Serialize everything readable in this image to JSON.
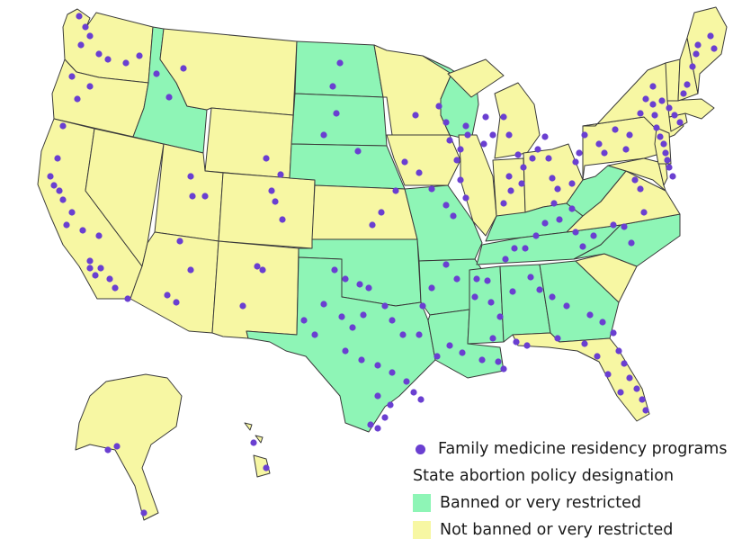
{
  "colors": {
    "restricted": "#8ef5b6",
    "not_restricted": "#f7f7a3",
    "program_dot": "#6a3fd1",
    "border": "#3a3a3a"
  },
  "legend": {
    "programs_label": "Family medicine residency programs",
    "policy_heading": "State abortion policy designation",
    "restricted_label": "Banned or very restricted",
    "not_restricted_label": "Not banned or very restricted"
  },
  "states": {
    "restricted": [
      "ID",
      "ND",
      "SD",
      "NE",
      "MO",
      "WI",
      "WV",
      "KY",
      "TN",
      "NC",
      "OK",
      "AR",
      "MS",
      "AL",
      "GA",
      "TX",
      "LA"
    ],
    "not_restricted": [
      "WA",
      "OR",
      "CA",
      "NV",
      "MT",
      "WY",
      "UT",
      "AZ",
      "CO",
      "NM",
      "KS",
      "MN",
      "IA",
      "IL",
      "IN",
      "MI",
      "OH",
      "PA",
      "NY",
      "VA",
      "SC",
      "FL",
      "ME",
      "NH",
      "VT",
      "MA",
      "CT",
      "NJ",
      "DE",
      "MD",
      "AK",
      "HI"
    ]
  }
}
